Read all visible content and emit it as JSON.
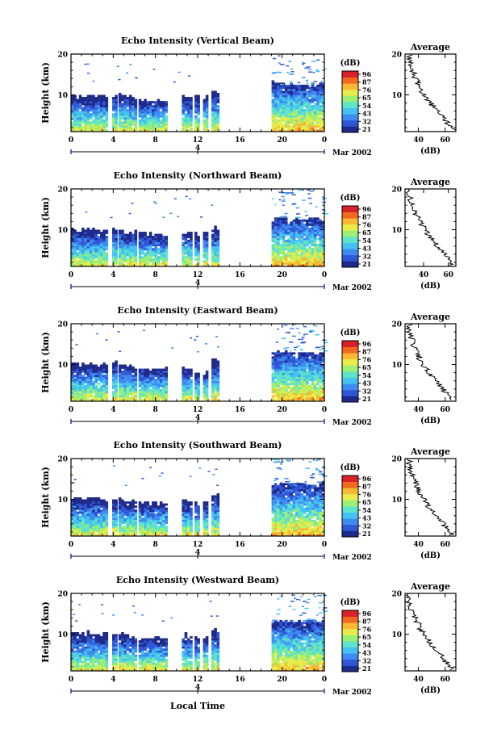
{
  "figure": {
    "xlabel": "Local Time",
    "date_label": "Mar 2002",
    "colorbar_unit": "(dB)",
    "colorbar_ticks": [],
    "average_title": "Average",
    "average_xlabel": "(dB)",
    "ylabel": "Height (km)",
    "day_marker": "4",
    "colormap": [
      "#1e2a8a",
      "#2f57d6",
      "#3f8bf0",
      "#44c2f2",
      "#5fe3c9",
      "#9cee74",
      "#e8ec4a",
      "#f7b934",
      "#f26a22",
      "#d8222a"
    ]
  },
  "chart_data": [
    {
      "type": "heatmap",
      "title": "Echo Intensity (Vertical Beam)",
      "xlabel": "",
      "ylabel": "Height (km)",
      "x_ticks": [
        "0",
        "4",
        "8",
        "12",
        "16",
        "20",
        "0"
      ],
      "y_ticks": [
        "10",
        "20"
      ],
      "xlim": [
        0,
        24
      ],
      "ylim": [
        1,
        20
      ],
      "colorbar": {
        "label": "(dB)",
        "ticks": [
          "96",
          "87",
          "76",
          "65",
          "54",
          "43",
          "32",
          "21"
        ],
        "range": [
          21,
          96
        ]
      },
      "data_blocks": [
        [
          0,
          3.5,
          9.5
        ],
        [
          3.9,
          4.3,
          9.8
        ],
        [
          4.5,
          4.9,
          10
        ],
        [
          5,
          6.2,
          9.3
        ],
        [
          6.4,
          9,
          8.6
        ],
        [
          10.5,
          11.4,
          9
        ],
        [
          11.7,
          12.2,
          9.5
        ],
        [
          12.5,
          13,
          9.2
        ],
        [
          13.3,
          13.9,
          10.5
        ],
        [
          19,
          24,
          12.5
        ]
      ],
      "average_profile": {
        "title": "Average",
        "xlabel": "(dB)",
        "x_ticks": [
          "40",
          "60"
        ],
        "y_ticks": [
          "10",
          "20"
        ],
        "xlim": [
          30,
          68
        ],
        "ylim": [
          1,
          20
        ],
        "heights": [
          1.5,
          3,
          5,
          7,
          9,
          11,
          13,
          15,
          17,
          19
        ],
        "values": [
          66,
          62,
          57,
          52,
          46,
          42,
          39,
          37,
          35,
          33
        ]
      }
    },
    {
      "type": "heatmap",
      "title": "Echo Intensity (Northward Beam)",
      "xlabel": "",
      "ylabel": "Height (km)",
      "x_ticks": [
        "0",
        "4",
        "8",
        "12",
        "16",
        "20",
        "0"
      ],
      "y_ticks": [
        "10",
        "20"
      ],
      "xlim": [
        0,
        24
      ],
      "ylim": [
        1,
        20
      ],
      "colorbar": {
        "label": "(dB)",
        "ticks": [
          "96",
          "87",
          "76",
          "65",
          "54",
          "43",
          "32",
          "21"
        ],
        "range": [
          21,
          96
        ]
      },
      "data_blocks": [
        [
          0,
          3.5,
          9.8
        ],
        [
          3.9,
          4.3,
          10
        ],
        [
          4.5,
          4.9,
          10
        ],
        [
          5,
          6.2,
          9.3
        ],
        [
          6.4,
          9,
          8.8
        ],
        [
          10.5,
          11.4,
          9
        ],
        [
          11.7,
          12.2,
          9
        ],
        [
          12.5,
          13,
          9.2
        ],
        [
          13.3,
          13.9,
          10
        ],
        [
          19,
          24,
          12.5
        ]
      ],
      "average_profile": {
        "title": "Average",
        "xlabel": "(dB)",
        "x_ticks": [
          "40",
          "60"
        ],
        "y_ticks": [
          "10",
          "20"
        ],
        "xlim": [
          25,
          66
        ],
        "ylim": [
          1,
          20
        ],
        "heights": [
          1.5,
          3,
          5,
          7,
          9,
          11,
          13,
          15,
          17,
          19
        ],
        "values": [
          63,
          59,
          54,
          49,
          43,
          39,
          35,
          32,
          30,
          28
        ]
      }
    },
    {
      "type": "heatmap",
      "title": "Echo Intensity (Eastward Beam)",
      "xlabel": "",
      "ylabel": "Height (km)",
      "x_ticks": [
        "0",
        "4",
        "8",
        "12",
        "16",
        "20",
        "0"
      ],
      "y_ticks": [
        "10",
        "20"
      ],
      "xlim": [
        0,
        24
      ],
      "ylim": [
        1,
        20
      ],
      "colorbar": {
        "label": "(dB)",
        "ticks": [
          "96",
          "87",
          "76",
          "65",
          "54",
          "43",
          "32",
          "21"
        ],
        "range": [
          21,
          96
        ]
      },
      "data_blocks": [
        [
          0,
          3.5,
          10
        ],
        [
          3.9,
          4.3,
          10.2
        ],
        [
          4.5,
          4.9,
          10
        ],
        [
          5,
          6.2,
          9.5
        ],
        [
          6.4,
          9,
          9
        ],
        [
          10.5,
          11.4,
          9
        ],
        [
          11.7,
          12.2,
          8
        ],
        [
          12.5,
          13,
          8.5
        ],
        [
          13.3,
          13.9,
          10.8
        ],
        [
          19,
          24,
          13
        ]
      ],
      "average_profile": {
        "title": "Average",
        "xlabel": "(dB)",
        "x_ticks": [
          "40",
          "60"
        ],
        "y_ticks": [
          "10",
          "20"
        ],
        "xlim": [
          30,
          68
        ],
        "ylim": [
          1,
          20
        ],
        "heights": [
          1.5,
          3,
          5,
          7,
          9,
          11,
          13,
          15,
          17,
          19
        ],
        "values": [
          65,
          61,
          56,
          51,
          46,
          42,
          39,
          36,
          34,
          33
        ]
      }
    },
    {
      "type": "heatmap",
      "title": "Echo Intensity (Southward Beam)",
      "xlabel": "",
      "ylabel": "Height (km)",
      "x_ticks": [
        "0",
        "4",
        "8",
        "12",
        "16",
        "20",
        "0"
      ],
      "y_ticks": [
        "10",
        "20"
      ],
      "xlim": [
        0,
        24
      ],
      "ylim": [
        1,
        20
      ],
      "colorbar": {
        "label": "(dB)",
        "ticks": [
          "96",
          "87",
          "76",
          "65",
          "54",
          "43",
          "32",
          "21"
        ],
        "range": [
          21,
          96
        ]
      },
      "data_blocks": [
        [
          0,
          3.5,
          10
        ],
        [
          3.9,
          4.3,
          10
        ],
        [
          4.5,
          4.9,
          10
        ],
        [
          5,
          6.2,
          9.5
        ],
        [
          6.4,
          9,
          9
        ],
        [
          10.5,
          11.4,
          9.5
        ],
        [
          11.7,
          12.2,
          9
        ],
        [
          12.5,
          13,
          9
        ],
        [
          13.3,
          13.9,
          10.8
        ],
        [
          19,
          24,
          13.5
        ]
      ],
      "average_profile": {
        "title": "Average",
        "xlabel": "(dB)",
        "x_ticks": [
          "40",
          "60"
        ],
        "y_ticks": [
          "10",
          "20"
        ],
        "xlim": [
          30,
          68
        ],
        "ylim": [
          1,
          20
        ],
        "heights": [
          1.5,
          3,
          5,
          7,
          9,
          11,
          13,
          15,
          17,
          19
        ],
        "values": [
          65,
          61,
          56,
          51,
          46,
          42,
          39,
          36,
          34,
          33
        ]
      }
    },
    {
      "type": "heatmap",
      "title": "Echo Intensity (Westward Beam)",
      "xlabel": "Local Time",
      "ylabel": "Height (km)",
      "x_ticks": [
        "0",
        "4",
        "8",
        "12",
        "16",
        "20",
        "0"
      ],
      "y_ticks": [
        "10",
        "20"
      ],
      "xlim": [
        0,
        24
      ],
      "ylim": [
        1,
        20
      ],
      "colorbar": {
        "label": "(dB)",
        "ticks": [
          "96",
          "87",
          "76",
          "65",
          "54",
          "43",
          "32",
          "21"
        ],
        "range": [
          21,
          96
        ]
      },
      "data_blocks": [
        [
          0,
          3.5,
          10
        ],
        [
          3.9,
          4.3,
          10
        ],
        [
          4.5,
          4.9,
          10
        ],
        [
          5,
          6.2,
          9.5
        ],
        [
          6.4,
          9,
          9
        ],
        [
          10.5,
          11.4,
          9.5
        ],
        [
          11.7,
          12.2,
          9
        ],
        [
          12.5,
          13,
          9
        ],
        [
          13.3,
          13.9,
          10.8
        ],
        [
          19,
          24,
          13
        ]
      ],
      "average_profile": {
        "title": "Average",
        "xlabel": "(dB)",
        "x_ticks": [
          "40",
          "60"
        ],
        "y_ticks": [
          "10",
          "20"
        ],
        "xlim": [
          30,
          68
        ],
        "ylim": [
          1,
          20
        ],
        "heights": [
          1.5,
          3,
          5,
          7,
          9,
          11,
          13,
          15,
          17,
          19
        ],
        "values": [
          65,
          61,
          56,
          51,
          46,
          42,
          39,
          36,
          34,
          33
        ]
      }
    }
  ]
}
